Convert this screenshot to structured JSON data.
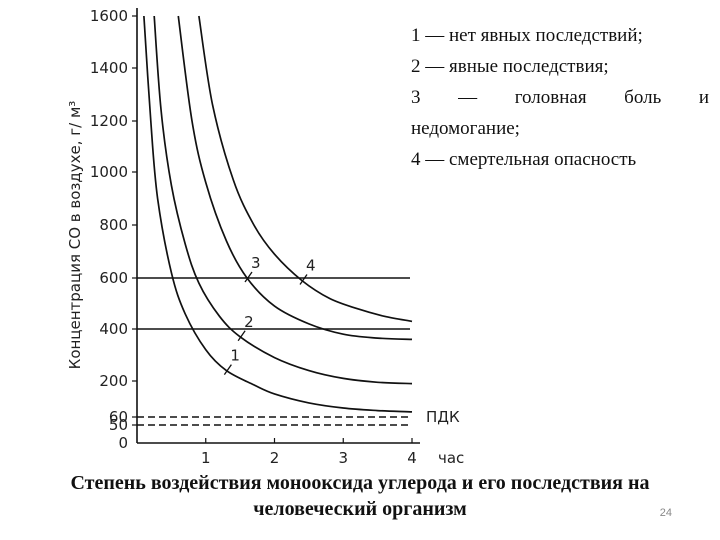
{
  "legend": {
    "items": [
      "1 — нет явных последствий;",
      "2 — явные последствия;",
      "3 — головная боль и",
      "недомогание;",
      "4 — смертельная опасность"
    ]
  },
  "caption": {
    "line1": "Степень воздействия монооксида углерода и его последствия на",
    "line2": "человеческий организм"
  },
  "page_number": "24",
  "chart_data": {
    "type": "line",
    "title": "",
    "xlabel": "час",
    "ylabel": "Концентрация СО в воздухе, г/ м³",
    "xlim": [
      0,
      4
    ],
    "ylim": [
      0,
      1600
    ],
    "x_ticks": [
      "0",
      "1",
      "2",
      "3",
      "4"
    ],
    "y_ticks": [
      "0",
      "50",
      "60",
      "200",
      "400",
      "600",
      "800",
      "1000",
      "1200",
      "1400",
      "1600"
    ],
    "grid": false,
    "series": [
      {
        "name": "1",
        "x": [
          0.1,
          0.2,
          0.3,
          0.5,
          0.7,
          1.0,
          1.3,
          1.7,
          2.0,
          2.5,
          3.0,
          3.5,
          4.0
        ],
        "y": [
          1600,
          1200,
          900,
          620,
          460,
          320,
          240,
          185,
          150,
          115,
          95,
          85,
          80
        ]
      },
      {
        "name": "2",
        "x": [
          0.25,
          0.35,
          0.5,
          0.7,
          0.9,
          1.2,
          1.5,
          2.0,
          2.5,
          3.0,
          3.5,
          4.0
        ],
        "y": [
          1600,
          1240,
          950,
          730,
          580,
          450,
          370,
          290,
          240,
          210,
          195,
          190
        ]
      },
      {
        "name": "3",
        "x": [
          0.6,
          0.8,
          1.0,
          1.3,
          1.6,
          2.0,
          2.5,
          3.0,
          3.5,
          4.0
        ],
        "y": [
          1600,
          1200,
          960,
          740,
          600,
          490,
          420,
          380,
          365,
          360
        ]
      },
      {
        "name": "4",
        "x": [
          0.9,
          1.1,
          1.4,
          1.7,
          2.0,
          2.4,
          2.8,
          3.2,
          3.6,
          4.0
        ],
        "y": [
          1600,
          1260,
          970,
          800,
          690,
          590,
          520,
          480,
          450,
          430
        ]
      }
    ],
    "reference_lines": [
      {
        "y": 600,
        "style": "solid"
      },
      {
        "y": 400,
        "style": "solid"
      },
      {
        "y": 60,
        "style": "dashed",
        "label": "ПДК"
      },
      {
        "y": 50,
        "style": "dashed"
      }
    ],
    "colors": {
      "lines": "#111111",
      "text": "#222222"
    }
  }
}
